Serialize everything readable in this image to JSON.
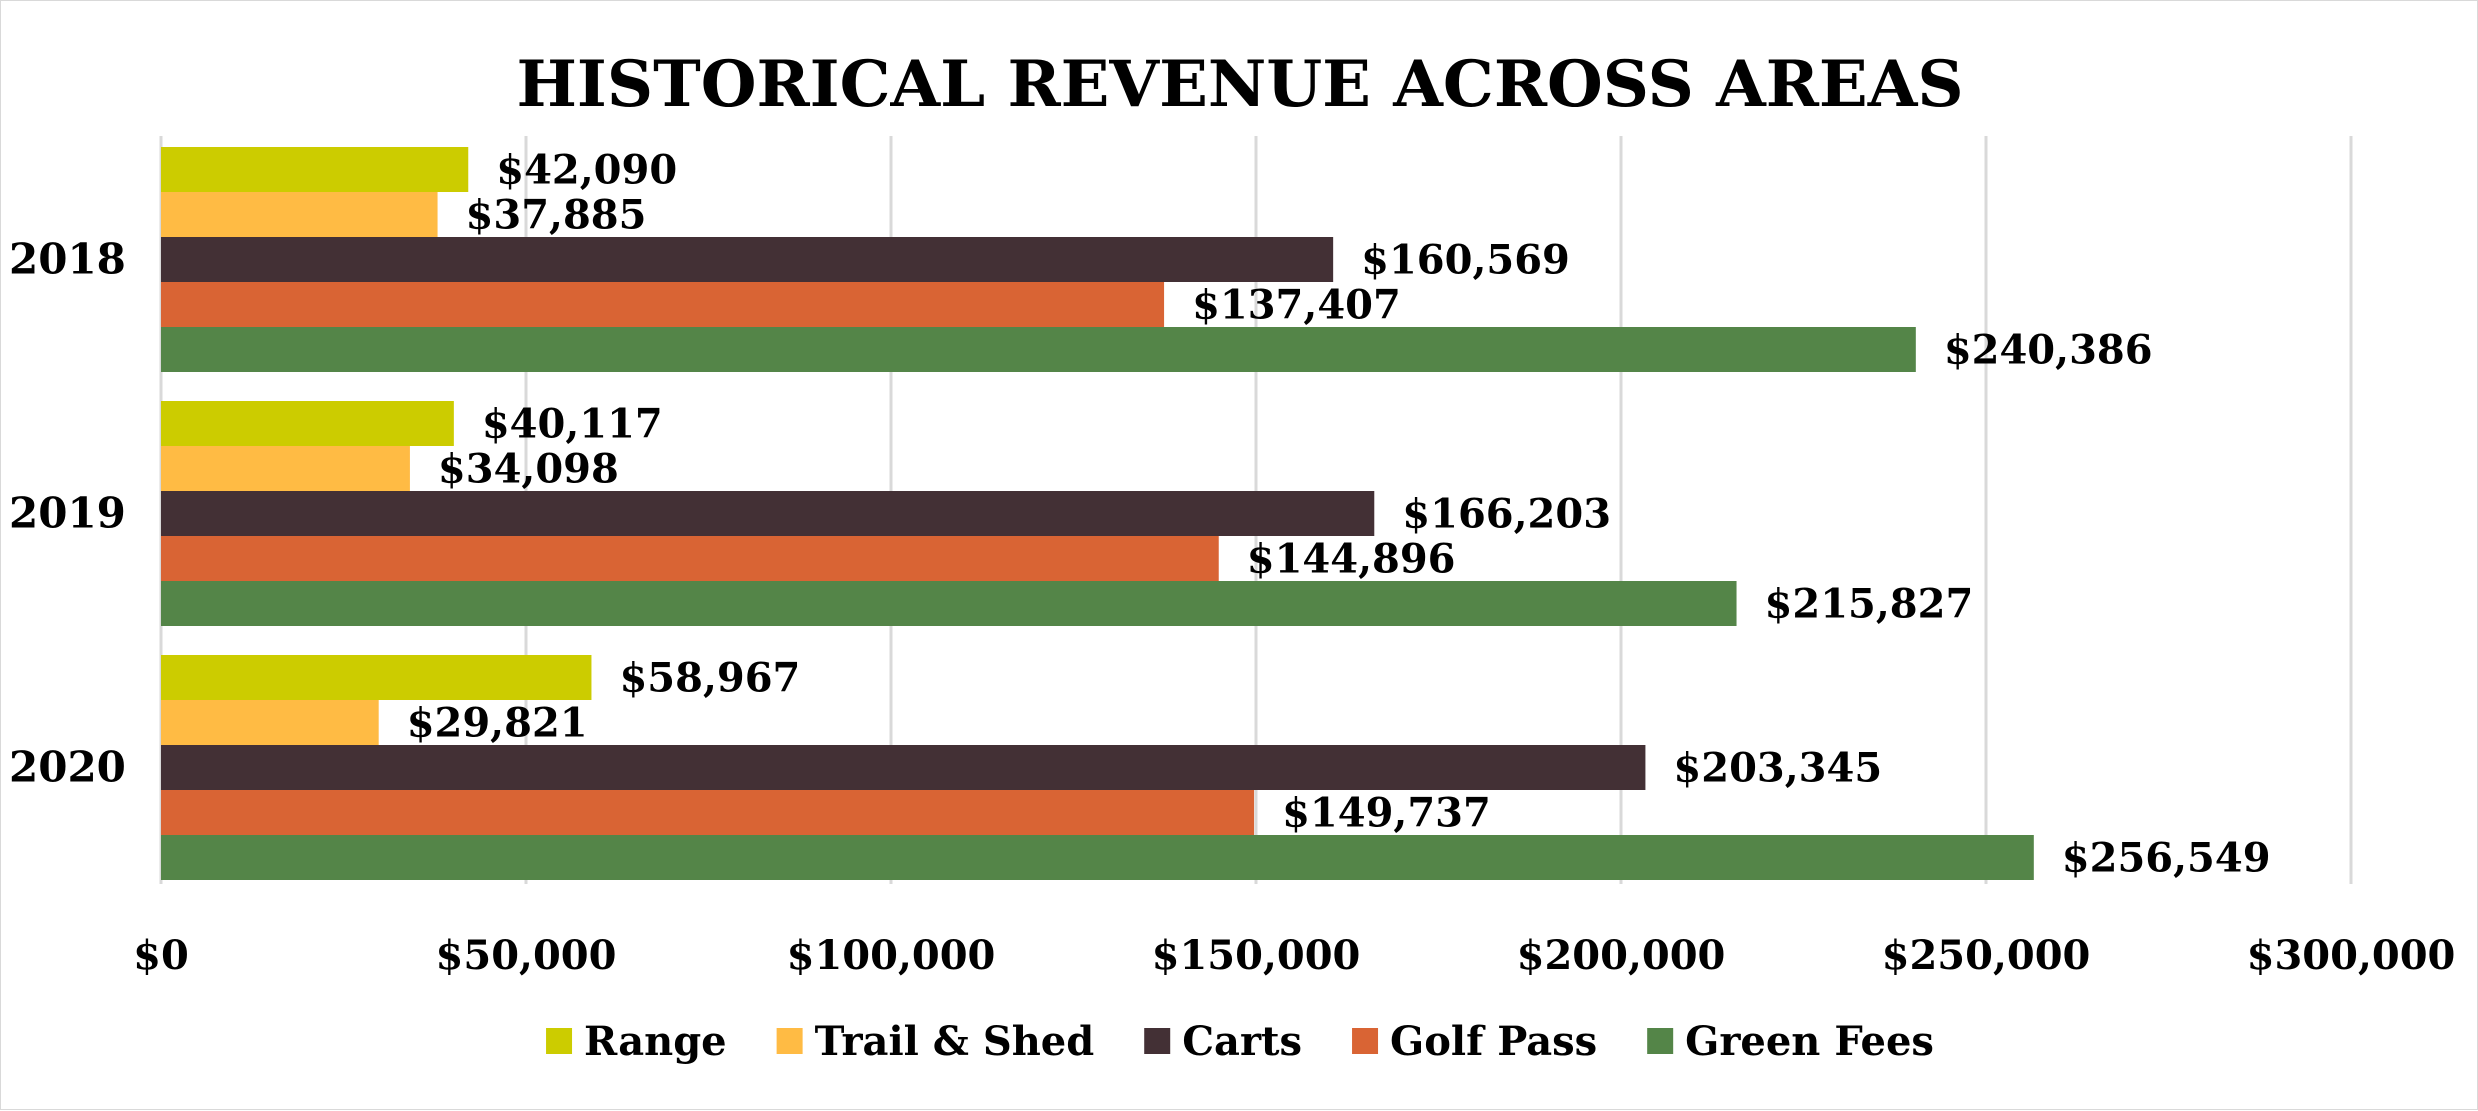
{
  "chart_data": {
    "type": "bar",
    "orientation": "horizontal",
    "title": "HISTORICAL REVENUE ACROSS AREAS",
    "categories": [
      "2018",
      "2019",
      "2020"
    ],
    "series": [
      {
        "name": "Range",
        "color": "#cccc00",
        "values": [
          42090,
          40117,
          58967
        ],
        "labels": [
          "$42,090",
          "$40,117",
          "$58,967"
        ]
      },
      {
        "name": "Trail & Shed",
        "color": "#ffbb44",
        "values": [
          37885,
          34098,
          29821
        ],
        "labels": [
          "$37,885",
          "$34,098",
          "$29,821"
        ]
      },
      {
        "name": "Carts",
        "color": "#433035",
        "values": [
          160569,
          166203,
          203345
        ],
        "labels": [
          "$160,569",
          "$166,203",
          "$203,345"
        ]
      },
      {
        "name": "Golf Pass",
        "color": "#d96434",
        "values": [
          137407,
          144896,
          149737
        ],
        "labels": [
          "$137,407",
          "$144,896",
          "$149,737"
        ]
      },
      {
        "name": "Green Fees",
        "color": "#548548",
        "values": [
          240386,
          215827,
          256549
        ],
        "labels": [
          "$240,386",
          "$215,827",
          "$256,549"
        ]
      }
    ],
    "xlim": [
      0,
      300000
    ],
    "xticks": [
      0,
      50000,
      100000,
      150000,
      200000,
      250000,
      300000
    ],
    "xtick_labels": [
      "$0",
      "$50,000",
      "$100,000",
      "$150,000",
      "$200,000",
      "$250,000",
      "$300,000"
    ],
    "grid": true,
    "legend_position": "bottom"
  }
}
